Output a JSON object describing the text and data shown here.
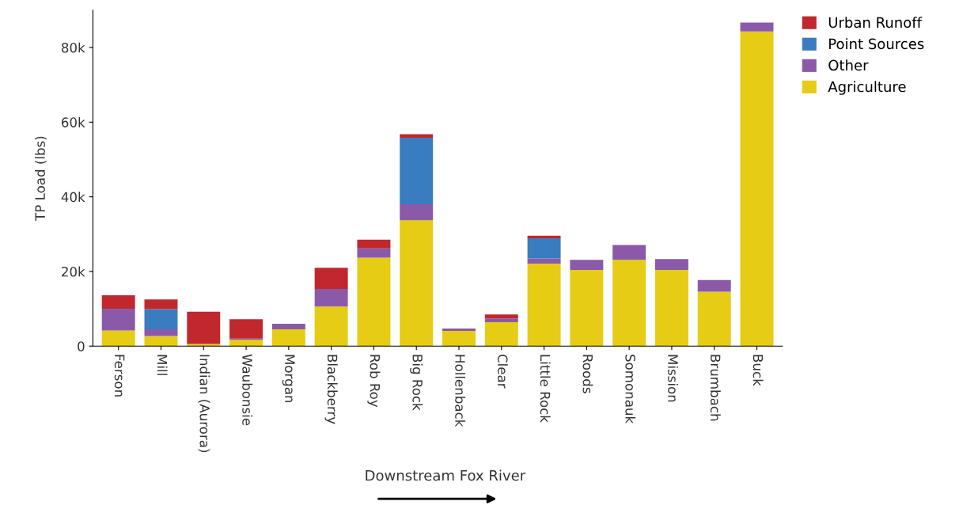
{
  "chart_data": {
    "type": "bar",
    "stacked": true,
    "ylabel": "TP Load (lbs)",
    "annotations": [
      "Downstream Fox River"
    ],
    "categories": [
      "Ferson",
      "Mill",
      "Indian (Aurora)",
      "Waubonsie",
      "Morgan",
      "Blackberry",
      "Rob Roy",
      "Big Rock",
      "Hollenback",
      "Clear",
      "Little Rock",
      "Roods",
      "Somonauk",
      "Mission",
      "Brumbach",
      "Buck"
    ],
    "series": [
      {
        "name": "Agriculture",
        "color": "#e6cc14",
        "values": [
          4200,
          2700,
          600,
          1700,
          4500,
          10600,
          23700,
          33700,
          4100,
          6400,
          22100,
          20400,
          23100,
          20400,
          14600,
          84300
        ]
      },
      {
        "name": "Other",
        "color": "#8a5aa8",
        "values": [
          5800,
          1800,
          0,
          300,
          1500,
          4700,
          2500,
          4300,
          600,
          1000,
          1400,
          2700,
          4000,
          2900,
          3100,
          2400
        ]
      },
      {
        "name": "Point Sources",
        "color": "#3a7cc0",
        "values": [
          0,
          5400,
          0,
          0,
          0,
          0,
          0,
          17800,
          0,
          0,
          5400,
          0,
          0,
          0,
          0,
          0
        ]
      },
      {
        "name": "Urban Runoff",
        "color": "#c0282d",
        "values": [
          3600,
          2600,
          8600,
          5200,
          0,
          5700,
          2300,
          1000,
          0,
          1100,
          700,
          0,
          0,
          0,
          0,
          0
        ]
      }
    ],
    "ylim": [
      0,
      90000
    ],
    "yticks": [
      {
        "value": 0,
        "label": "0"
      },
      {
        "value": 20000,
        "label": "20k"
      },
      {
        "value": 40000,
        "label": "40k"
      },
      {
        "value": 60000,
        "label": "60k"
      },
      {
        "value": 80000,
        "label": "80k"
      }
    ],
    "grid": false,
    "legend": "top right"
  }
}
